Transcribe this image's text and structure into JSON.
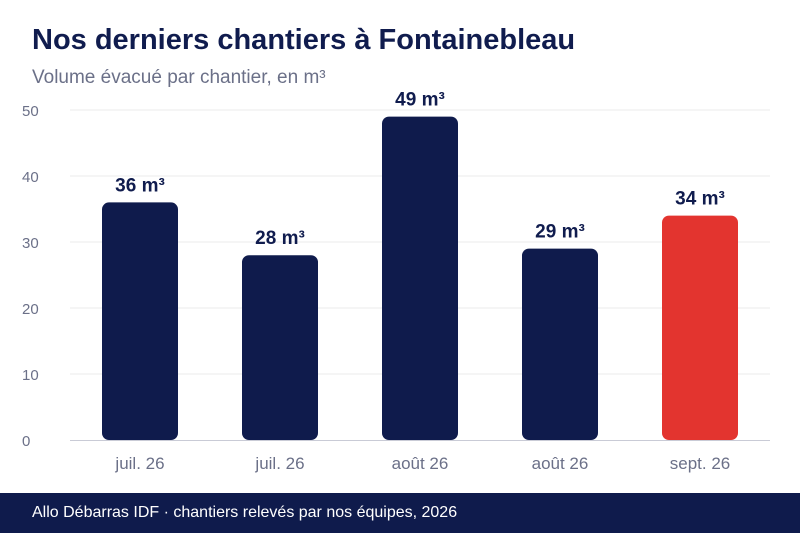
{
  "header": {
    "title": "Nos derniers chantiers à Fontainebleau",
    "subtitle": "Volume évacué par chantier, en m³"
  },
  "footer": {
    "source": "Allo Débarras IDF · chantiers relevés par nos équipes, 2026"
  },
  "colors": {
    "bar": "#0f1b4c",
    "highlight": "#e3342f",
    "grid": "#ebebeb",
    "axis": "#c9cbd6",
    "tick_text": "#6b7088",
    "label_text": "#101c4e"
  },
  "chart_data": {
    "type": "bar",
    "title": "Nos derniers chantiers à Fontainebleau",
    "subtitle": "Volume évacué par chantier, en m³",
    "categories": [
      "juil. 26",
      "juil. 26",
      "août 26",
      "août 26",
      "sept. 26"
    ],
    "values": [
      36,
      28,
      49,
      29,
      34
    ],
    "value_labels": [
      "36 m³",
      "28 m³",
      "49 m³",
      "29 m³",
      "34 m³"
    ],
    "highlight_index": 4,
    "ylim": [
      0,
      50
    ],
    "yticks": [
      0,
      10,
      20,
      30,
      40,
      50
    ],
    "grid": true
  }
}
